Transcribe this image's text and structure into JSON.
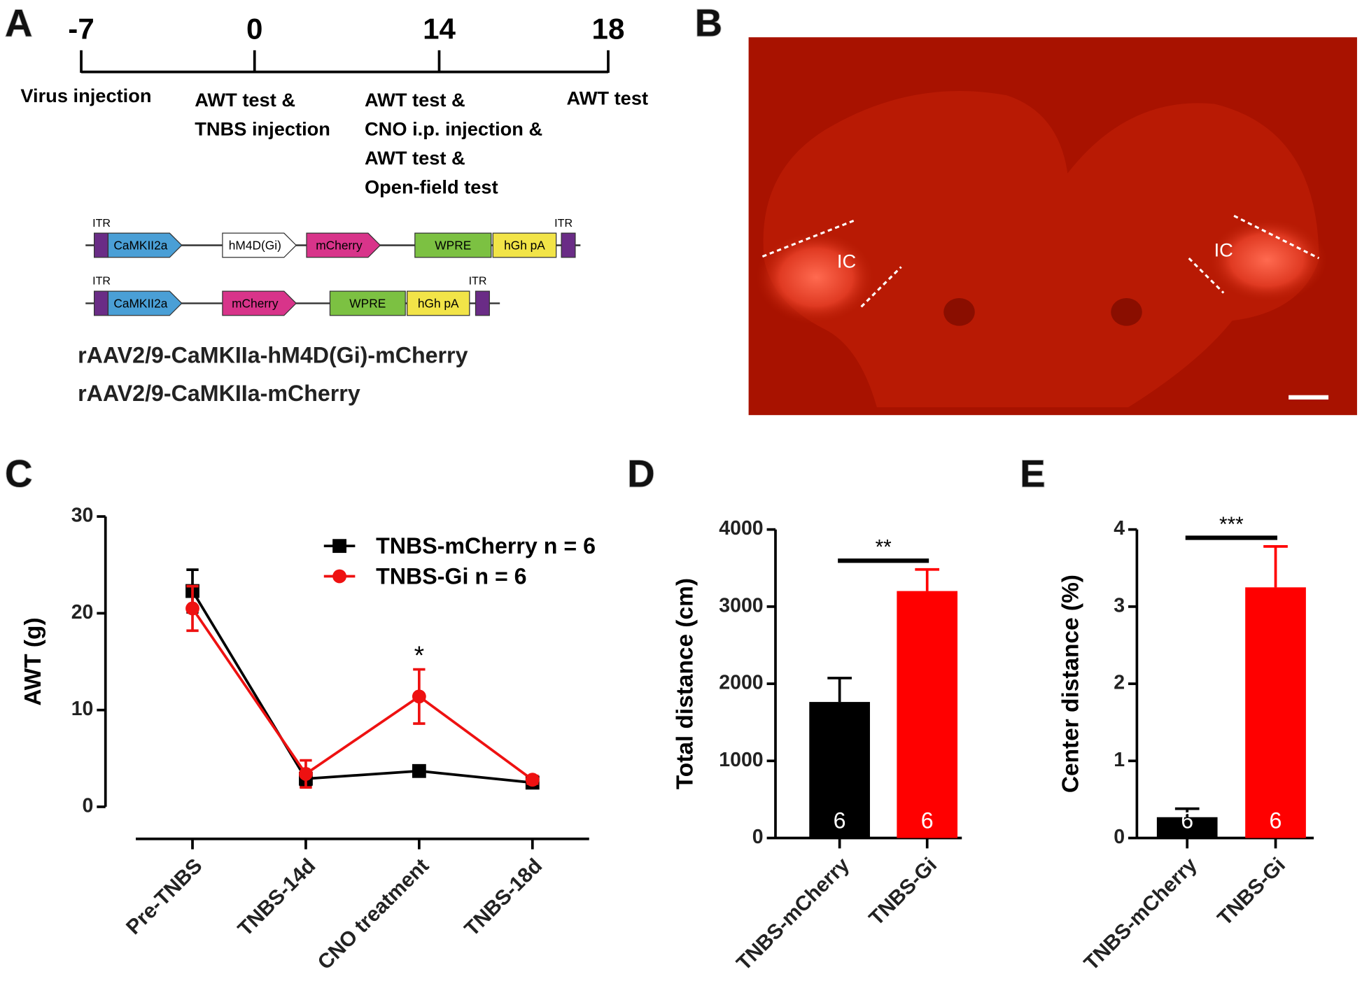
{
  "panel_a": {
    "label": "A",
    "timeline": {
      "days": [
        "-7",
        "0",
        "14",
        "18"
      ],
      "events": [
        [
          "Virus injection"
        ],
        [
          "AWT test &",
          "TNBS injection"
        ],
        [
          "AWT test &",
          "CNO i.p. injection &",
          "AWT test &",
          "Open-field test"
        ],
        [
          "AWT test"
        ]
      ]
    },
    "constructs": [
      [
        "ITR",
        "CaMKII2a",
        "hM4D(Gi)",
        "mCherry",
        "WPRE",
        "hGh pA",
        "ITR"
      ],
      [
        "ITR",
        "CaMKII2a",
        "mCherry",
        "WPRE",
        "hGh pA",
        "ITR"
      ]
    ],
    "vectors": [
      "rAAV2/9-CaMKIIa-hM4D(Gi)-mCherry",
      "rAAV2/9-CaMKIIa-mCherry"
    ]
  },
  "panel_b": {
    "label": "B",
    "regions": [
      "IC",
      "IC"
    ]
  },
  "chart_data": [
    {
      "type": "line",
      "panel": "C",
      "ylabel": "AWT (g)",
      "categories": [
        "Pre-TNBS",
        "TNBS-14d",
        "CNO treatment",
        "TNBS-18d"
      ],
      "ylim": [
        0,
        30
      ],
      "yticks": [
        0,
        10,
        20,
        30
      ],
      "series": [
        {
          "name": "TNBS-mCherry n = 6",
          "color": "#000000",
          "marker": "square",
          "values": [
            22.3,
            2.9,
            3.7,
            2.5
          ],
          "errors": [
            2.2,
            0.8,
            0.3,
            0.5
          ]
        },
        {
          "name": "TNBS-Gi n = 6",
          "color": "#ee1111",
          "marker": "circle",
          "values": [
            20.5,
            3.4,
            11.4,
            2.8
          ],
          "errors": [
            2.3,
            1.4,
            2.8,
            0.4
          ]
        }
      ],
      "annotations": [
        {
          "category": 2,
          "text": "*"
        }
      ]
    },
    {
      "type": "bar",
      "panel": "D",
      "ylabel": "Total distance (cm)",
      "categories": [
        "TNBS-mCherry",
        "TNBS-Gi"
      ],
      "values": [
        1764,
        3202
      ],
      "errors": [
        310,
        280
      ],
      "colors": [
        "#000000",
        "#ff0000"
      ],
      "n": [
        6,
        6
      ],
      "ylim": [
        0,
        4000
      ],
      "yticks": [
        0,
        1000,
        2000,
        3000,
        4000
      ],
      "significance": "**"
    },
    {
      "type": "bar",
      "panel": "E",
      "ylabel": "Center distance (%)",
      "categories": [
        "TNBS-mCherry",
        "TNBS-Gi"
      ],
      "values": [
        0.27,
        3.25
      ],
      "errors": [
        0.11,
        0.53
      ],
      "colors": [
        "#000000",
        "#ff0000"
      ],
      "n": [
        6,
        6
      ],
      "ylim": [
        0,
        4
      ],
      "yticks": [
        0,
        1,
        2,
        3,
        4
      ],
      "significance": "***"
    }
  ]
}
